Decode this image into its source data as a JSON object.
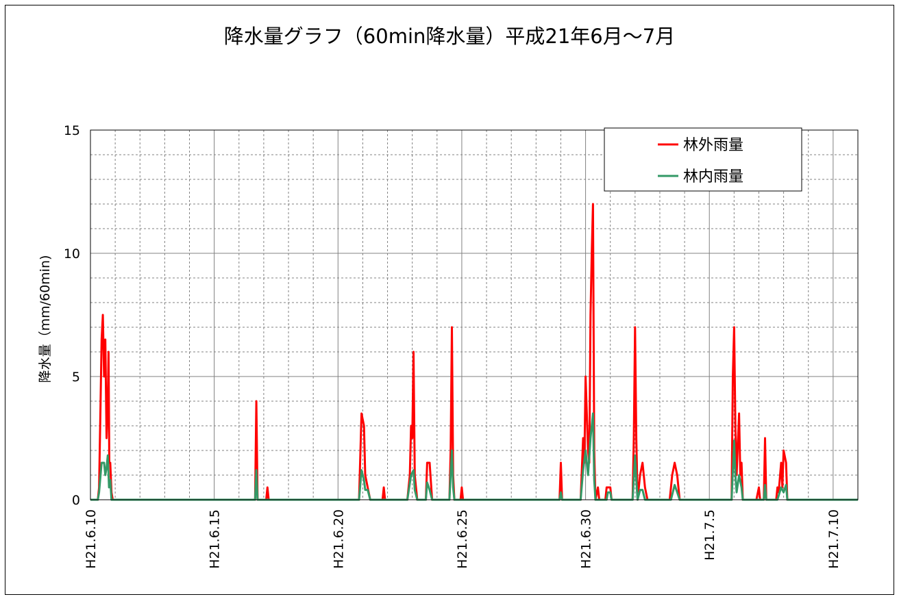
{
  "chart_data": {
    "type": "line",
    "title": "降水量グラフ（60min降水量）平成21年6月～7月",
    "ylabel": "降水量（mm/60min)",
    "xlabel": "",
    "ylim": [
      0,
      15
    ],
    "yticks": [
      0,
      5,
      10,
      15
    ],
    "xlim": [
      10,
      41
    ],
    "xticks": [
      {
        "x": 10,
        "label": "H21.6.10"
      },
      {
        "x": 15,
        "label": "H21.6.15"
      },
      {
        "x": 20,
        "label": "H21.6.20"
      },
      {
        "x": 25,
        "label": "H21.6.25"
      },
      {
        "x": 30,
        "label": "H21.6.30"
      },
      {
        "x": 35,
        "label": "H21.7.5"
      },
      {
        "x": 40,
        "label": "H21.7.10"
      }
    ],
    "grid": "major solid, minor dashed",
    "legend_position": "top-right",
    "series": [
      {
        "name": "林外雨量",
        "color": "#ff0000",
        "points": [
          [
            10.0,
            0
          ],
          [
            10.3,
            0
          ],
          [
            10.35,
            0.5
          ],
          [
            10.4,
            3.5
          ],
          [
            10.45,
            6.5
          ],
          [
            10.5,
            7.5
          ],
          [
            10.55,
            5.0
          ],
          [
            10.6,
            6.5
          ],
          [
            10.65,
            2.5
          ],
          [
            10.7,
            4.0
          ],
          [
            10.73,
            6.0
          ],
          [
            10.76,
            1.5
          ],
          [
            10.8,
            1.5
          ],
          [
            10.85,
            0.3
          ],
          [
            10.9,
            0
          ],
          [
            16.65,
            0
          ],
          [
            16.7,
            4.0
          ],
          [
            16.75,
            0
          ],
          [
            17.1,
            0
          ],
          [
            17.15,
            0.5
          ],
          [
            17.2,
            0
          ],
          [
            20.85,
            0
          ],
          [
            20.95,
            3.5
          ],
          [
            21.05,
            3.0
          ],
          [
            21.1,
            1.0
          ],
          [
            21.2,
            0.5
          ],
          [
            21.3,
            0
          ],
          [
            21.8,
            0
          ],
          [
            21.85,
            0.5
          ],
          [
            21.9,
            0
          ],
          [
            22.8,
            0
          ],
          [
            22.9,
            1.0
          ],
          [
            22.95,
            3.0
          ],
          [
            23.0,
            2.5
          ],
          [
            23.05,
            6.0
          ],
          [
            23.1,
            1.0
          ],
          [
            23.2,
            0
          ],
          [
            23.55,
            0
          ],
          [
            23.6,
            1.5
          ],
          [
            23.7,
            1.5
          ],
          [
            23.8,
            0
          ],
          [
            24.5,
            0
          ],
          [
            24.55,
            2.0
          ],
          [
            24.6,
            7.0
          ],
          [
            24.65,
            1.0
          ],
          [
            24.7,
            0
          ],
          [
            24.95,
            0
          ],
          [
            25.0,
            0.5
          ],
          [
            25.05,
            0
          ],
          [
            28.95,
            0
          ],
          [
            29.0,
            1.5
          ],
          [
            29.05,
            0
          ],
          [
            29.8,
            0
          ],
          [
            29.9,
            2.5
          ],
          [
            29.95,
            1.5
          ],
          [
            30.0,
            5.0
          ],
          [
            30.1,
            2.0
          ],
          [
            30.15,
            1.5
          ],
          [
            30.2,
            7.5
          ],
          [
            30.25,
            10.0
          ],
          [
            30.3,
            12.0
          ],
          [
            30.35,
            2.0
          ],
          [
            30.4,
            0
          ],
          [
            30.5,
            0.5
          ],
          [
            30.55,
            0
          ],
          [
            30.8,
            0
          ],
          [
            30.85,
            0.5
          ],
          [
            31.0,
            0.5
          ],
          [
            31.05,
            0
          ],
          [
            31.9,
            0
          ],
          [
            31.95,
            2.5
          ],
          [
            32.0,
            7.0
          ],
          [
            32.05,
            2.5
          ],
          [
            32.1,
            0
          ],
          [
            32.2,
            1.0
          ],
          [
            32.3,
            1.5
          ],
          [
            32.4,
            0.5
          ],
          [
            32.5,
            0
          ],
          [
            33.4,
            0
          ],
          [
            33.5,
            1.0
          ],
          [
            33.6,
            1.5
          ],
          [
            33.7,
            1.0
          ],
          [
            33.8,
            0
          ],
          [
            35.9,
            0
          ],
          [
            35.95,
            5.0
          ],
          [
            36.0,
            7.0
          ],
          [
            36.05,
            3.0
          ],
          [
            36.1,
            1.0
          ],
          [
            36.2,
            3.5
          ],
          [
            36.25,
            1.0
          ],
          [
            36.3,
            1.5
          ],
          [
            36.35,
            0
          ],
          [
            36.9,
            0
          ],
          [
            37.0,
            0.5
          ],
          [
            37.05,
            0
          ],
          [
            37.2,
            0
          ],
          [
            37.25,
            2.5
          ],
          [
            37.3,
            0
          ],
          [
            37.7,
            0
          ],
          [
            37.75,
            0.5
          ],
          [
            37.8,
            0.3
          ],
          [
            37.9,
            1.5
          ],
          [
            37.95,
            0.5
          ],
          [
            38.0,
            2.0
          ],
          [
            38.1,
            1.5
          ],
          [
            38.15,
            0
          ]
        ]
      },
      {
        "name": "林内雨量",
        "color": "#339966",
        "points": [
          [
            10.0,
            0
          ],
          [
            10.3,
            0
          ],
          [
            10.35,
            0.3
          ],
          [
            10.45,
            1.5
          ],
          [
            10.55,
            1.5
          ],
          [
            10.6,
            1.0
          ],
          [
            10.65,
            1.3
          ],
          [
            10.7,
            1.8
          ],
          [
            10.75,
            0.5
          ],
          [
            10.8,
            0.8
          ],
          [
            10.85,
            0
          ],
          [
            16.65,
            0
          ],
          [
            16.7,
            1.2
          ],
          [
            16.75,
            0
          ],
          [
            20.85,
            0
          ],
          [
            20.95,
            1.2
          ],
          [
            21.05,
            0.8
          ],
          [
            21.1,
            0.4
          ],
          [
            21.2,
            0.4
          ],
          [
            21.3,
            0
          ],
          [
            22.8,
            0
          ],
          [
            22.95,
            1.0
          ],
          [
            23.05,
            1.2
          ],
          [
            23.1,
            0.4
          ],
          [
            23.2,
            0
          ],
          [
            23.55,
            0
          ],
          [
            23.6,
            0.7
          ],
          [
            23.7,
            0.4
          ],
          [
            23.8,
            0
          ],
          [
            24.5,
            0
          ],
          [
            24.6,
            2.0
          ],
          [
            24.65,
            0.5
          ],
          [
            24.7,
            0
          ],
          [
            28.95,
            0
          ],
          [
            29.0,
            0.3
          ],
          [
            29.05,
            0
          ],
          [
            29.8,
            0
          ],
          [
            29.9,
            1.2
          ],
          [
            30.0,
            2.0
          ],
          [
            30.1,
            1.0
          ],
          [
            30.2,
            2.5
          ],
          [
            30.3,
            3.5
          ],
          [
            30.35,
            0.8
          ],
          [
            30.4,
            0
          ],
          [
            30.85,
            0
          ],
          [
            30.9,
            0.3
          ],
          [
            31.0,
            0.3
          ],
          [
            31.05,
            0
          ],
          [
            31.9,
            0
          ],
          [
            32.0,
            1.8
          ],
          [
            32.05,
            0.8
          ],
          [
            32.1,
            0
          ],
          [
            32.2,
            0.4
          ],
          [
            32.3,
            0.4
          ],
          [
            32.4,
            0
          ],
          [
            33.45,
            0
          ],
          [
            33.6,
            0.6
          ],
          [
            33.7,
            0.3
          ],
          [
            33.8,
            0
          ],
          [
            35.9,
            0
          ],
          [
            36.0,
            2.4
          ],
          [
            36.05,
            1.0
          ],
          [
            36.1,
            0.3
          ],
          [
            36.2,
            1.0
          ],
          [
            36.3,
            0.5
          ],
          [
            36.35,
            0
          ],
          [
            37.2,
            0
          ],
          [
            37.25,
            0.6
          ],
          [
            37.3,
            0
          ],
          [
            37.75,
            0
          ],
          [
            37.9,
            0.5
          ],
          [
            38.0,
            0.3
          ],
          [
            38.1,
            0.6
          ],
          [
            38.15,
            0
          ]
        ]
      }
    ]
  }
}
